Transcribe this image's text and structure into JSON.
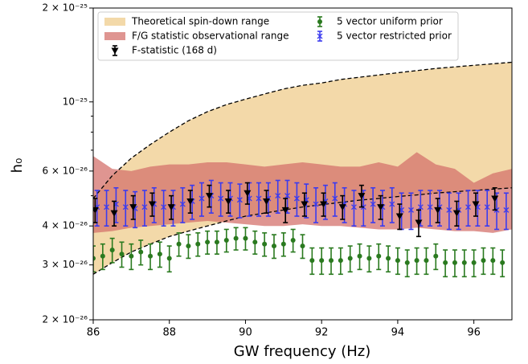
{
  "chart_data": {
    "type": "errorbar",
    "xlabel": "GW frequency (Hz)",
    "ylabel": "h₀",
    "log_y": true,
    "legend": "upper left",
    "xlim": [
      86,
      97
    ],
    "xticks": [
      86,
      88,
      90,
      92,
      94,
      96
    ],
    "ylim": [
      2e-26,
      2e-25
    ],
    "yticks": [
      {
        "value": 2e-26,
        "label": "2 × 10⁻²⁶"
      },
      {
        "value": 3e-26,
        "label": "3 × 10⁻²⁶"
      },
      {
        "value": 4e-26,
        "label": "4 × 10⁻²⁶"
      },
      {
        "value": 6e-26,
        "label": "6 × 10⁻²⁶"
      },
      {
        "value": 1e-25,
        "label": "10⁻²⁵"
      },
      {
        "value": 2e-25,
        "label": "2 × 10⁻²⁵"
      }
    ],
    "yminorticks": [
      5e-26,
      7e-26,
      8e-26,
      9e-26
    ],
    "bands": [
      {
        "name": "Theoretical spin-down range",
        "color": "#f3d9a9",
        "edge": "dashed",
        "x": [
          86,
          86.5,
          87,
          87.5,
          88,
          88.5,
          89,
          89.5,
          90,
          90.5,
          91,
          91.5,
          92,
          92.5,
          93,
          93.5,
          94,
          94.5,
          95,
          95.5,
          96,
          96.5,
          97
        ],
        "lower": [
          2.8e-26,
          3.05e-26,
          3.3e-26,
          3.5e-26,
          3.7e-26,
          3.85e-26,
          4e-26,
          4.15e-26,
          4.3e-26,
          4.4e-26,
          4.5e-26,
          4.6e-26,
          4.68e-26,
          4.76e-26,
          4.84e-26,
          4.9e-26,
          4.97e-26,
          5.03e-26,
          5.1e-26,
          5.15e-26,
          5.2e-26,
          5.25e-26,
          5.3e-26
        ],
        "upper": [
          4.9e-26,
          5.8e-26,
          6.6e-26,
          7.3e-26,
          8e-26,
          8.7e-26,
          9.3e-26,
          9.8e-26,
          1.02e-25,
          1.06e-25,
          1.1e-25,
          1.13e-25,
          1.15e-25,
          1.18e-25,
          1.2e-25,
          1.22e-25,
          1.24e-25,
          1.26e-25,
          1.28e-25,
          1.295e-25,
          1.31e-25,
          1.325e-25,
          1.34e-25
        ]
      },
      {
        "name": "F/G statistic observational range",
        "color": "#d4716c",
        "x": [
          86,
          86.5,
          87,
          87.5,
          88,
          88.5,
          89,
          89.5,
          90,
          90.5,
          91,
          91.5,
          92,
          92.5,
          93,
          93.5,
          94,
          94.5,
          95,
          95.5,
          96,
          96.5,
          97
        ],
        "lower": [
          3.8e-26,
          3.85e-26,
          3.95e-26,
          4e-26,
          4.05e-26,
          4.1e-26,
          4.15e-26,
          4.1e-26,
          4.05e-26,
          4e-26,
          4e-26,
          4.05e-26,
          4e-26,
          4e-26,
          3.95e-26,
          3.9e-26,
          3.9e-26,
          3.95e-26,
          3.9e-26,
          3.85e-26,
          3.85e-26,
          3.8e-26,
          3.9e-26
        ],
        "upper": [
          6.7e-26,
          6.1e-26,
          6e-26,
          6.2e-26,
          6.3e-26,
          6.3e-26,
          6.4e-26,
          6.4e-26,
          6.3e-26,
          6.2e-26,
          6.3e-26,
          6.4e-26,
          6.3e-26,
          6.2e-26,
          6.2e-26,
          6.4e-26,
          6.2e-26,
          6.9e-26,
          6.3e-26,
          6.1e-26,
          5.5e-26,
          5.9e-26,
          6.1e-26
        ]
      }
    ],
    "series": [
      {
        "name": "F-statistic (168 d)",
        "color": "#000000",
        "marker": "triangle-down",
        "x": [
          86.05,
          86.55,
          87.05,
          87.55,
          88.05,
          88.55,
          89.05,
          89.55,
          90.05,
          90.55,
          91.05,
          91.55,
          92.05,
          92.55,
          93.05,
          93.55,
          94.05,
          94.55,
          95.05,
          95.55,
          96.05,
          96.55
        ],
        "values": [
          4.5e-26,
          4.4e-26,
          4.6e-26,
          4.7e-26,
          4.6e-26,
          4.8e-26,
          5e-26,
          4.8e-26,
          5.1e-26,
          4.8e-26,
          4.5e-26,
          4.7e-26,
          4.7e-26,
          4.6e-26,
          5e-26,
          4.6e-26,
          4.3e-26,
          4.1e-26,
          4.5e-26,
          4.4e-26,
          4.7e-26,
          4.9e-26
        ],
        "errors": [
          4e-27,
          4e-27,
          4e-27,
          4e-27,
          4e-27,
          4e-27,
          4e-27,
          4e-27,
          4e-27,
          4e-27,
          4e-27,
          4e-27,
          4e-27,
          4e-27,
          4e-27,
          4e-27,
          4e-27,
          4e-27,
          4e-27,
          4e-27,
          4e-27,
          4e-27
        ]
      },
      {
        "name": "5 vector uniform prior",
        "color": "#2a7a1f",
        "marker": "circle",
        "x": [
          86,
          86.25,
          86.5,
          86.75,
          87,
          87.25,
          87.5,
          87.75,
          88,
          88.25,
          88.5,
          88.75,
          89,
          89.25,
          89.5,
          89.75,
          90,
          90.25,
          90.5,
          90.75,
          91,
          91.25,
          91.5,
          91.75,
          92,
          92.25,
          92.5,
          92.75,
          93,
          93.25,
          93.5,
          93.75,
          94,
          94.25,
          94.5,
          94.75,
          95,
          95.25,
          95.5,
          95.75,
          96,
          96.25,
          96.5,
          96.75
        ],
        "values": [
          3.15e-26,
          3.2e-26,
          3.35e-26,
          3.25e-26,
          3.2e-26,
          3.3e-26,
          3.2e-26,
          3.25e-26,
          3.15e-26,
          3.5e-26,
          3.45e-26,
          3.5e-26,
          3.55e-26,
          3.55e-26,
          3.6e-26,
          3.65e-26,
          3.65e-26,
          3.55e-26,
          3.5e-26,
          3.45e-26,
          3.5e-26,
          3.6e-26,
          3.45e-26,
          3.1e-26,
          3.1e-26,
          3.1e-26,
          3.1e-26,
          3.15e-26,
          3.2e-26,
          3.15e-26,
          3.2e-26,
          3.15e-26,
          3.1e-26,
          3.05e-26,
          3.1e-26,
          3.1e-26,
          3.2e-26,
          3.05e-26,
          3.05e-26,
          3.05e-26,
          3.05e-26,
          3.1e-26,
          3.1e-26,
          3.05e-26
        ],
        "errors": [
          3e-27,
          3e-27,
          3e-27,
          3e-27,
          3e-27,
          3e-27,
          3e-27,
          3e-27,
          3e-27,
          3e-27,
          3e-27,
          3e-27,
          3e-27,
          3e-27,
          3e-27,
          3e-27,
          3e-27,
          3e-27,
          3e-27,
          3e-27,
          3e-27,
          3e-27,
          3e-27,
          3e-27,
          3e-27,
          3e-27,
          3e-27,
          3e-27,
          3e-27,
          3e-27,
          3e-27,
          3e-27,
          3e-27,
          3e-27,
          3e-27,
          3e-27,
          3e-27,
          3e-27,
          3e-27,
          3e-27,
          3e-27,
          3e-27,
          3e-27,
          3e-27
        ]
      },
      {
        "name": "5 vector restricted prior",
        "color": "#3b3bef",
        "marker": "x",
        "x": [
          86.1,
          86.35,
          86.6,
          86.85,
          87.1,
          87.35,
          87.6,
          87.85,
          88.1,
          88.35,
          88.6,
          88.85,
          89.1,
          89.35,
          89.6,
          89.85,
          90.1,
          90.35,
          90.6,
          90.85,
          91.1,
          91.35,
          91.6,
          91.85,
          92.1,
          92.35,
          92.6,
          92.85,
          93.1,
          93.35,
          93.6,
          93.85,
          94.1,
          94.35,
          94.6,
          94.85,
          95.1,
          95.35,
          95.6,
          95.85,
          96.1,
          96.35,
          96.6,
          96.85
        ],
        "values": [
          4.6e-26,
          4.6e-26,
          4.7e-26,
          4.6e-26,
          4.55e-26,
          4.6e-26,
          4.7e-26,
          4.6e-26,
          4.6e-26,
          4.7e-26,
          4.8e-26,
          4.9e-26,
          5e-26,
          4.9e-26,
          4.9e-26,
          4.85e-26,
          4.9e-26,
          4.9e-26,
          4.9e-26,
          5e-26,
          5e-26,
          4.9e-26,
          4.85e-26,
          4.7e-26,
          4.8e-26,
          4.9e-26,
          4.7e-26,
          4.6e-26,
          4.6e-26,
          4.7e-26,
          4.6e-26,
          4.7e-26,
          4.5e-26,
          4.5e-26,
          4.6e-26,
          4.6e-26,
          4.6e-26,
          4.5e-26,
          4.5e-26,
          4.6e-26,
          4.6e-26,
          4.6e-26,
          4.5e-26,
          4.5e-26
        ],
        "errors": [
          6e-27,
          6e-27,
          6e-27,
          6e-27,
          6e-27,
          6e-27,
          6e-27,
          6e-27,
          6e-27,
          6e-27,
          6e-27,
          6e-27,
          6e-27,
          6e-27,
          6e-27,
          6e-27,
          6e-27,
          6e-27,
          6e-27,
          6e-27,
          6e-27,
          6e-27,
          6e-27,
          6e-27,
          6e-27,
          6e-27,
          6e-27,
          6e-27,
          6e-27,
          6e-27,
          6e-27,
          6e-27,
          6e-27,
          6e-27,
          6e-27,
          6e-27,
          6e-27,
          6e-27,
          6e-27,
          6e-27,
          6e-27,
          6e-27,
          6e-27,
          6e-27
        ]
      }
    ]
  }
}
